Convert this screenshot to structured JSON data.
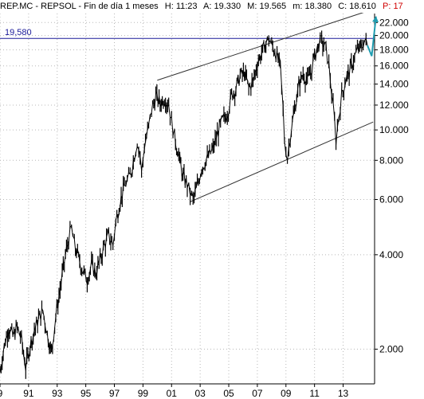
{
  "header": {
    "symbol": "REP.MC - REPSOL - Fin de día 1 meses",
    "h_label": "H:",
    "h_value": "11:23",
    "a_label": "A:",
    "a_value": "19.330",
    "m_label": "M:",
    "m_value": "19.565",
    "m2_label": "m:",
    "m2_value": "18.380",
    "c_label": "C:",
    "c_value": "18.610",
    "p_label": "P",
    "p_value": ": 17"
  },
  "resistance_label": "19,580",
  "colors": {
    "price": "#000000",
    "grid": "#b8b8b8",
    "channel": "#333333",
    "resistance": "#1a1a99",
    "projection": "#1f9db0",
    "p_value": "#d00000"
  },
  "chart_data": {
    "type": "line",
    "title": "REP.MC - REPSOL - Fin de día 1 meses",
    "y_scale": "log",
    "ylim": [
      1.55,
      23.5
    ],
    "y_ticks": [
      2,
      4,
      6,
      8,
      10,
      12,
      14,
      16,
      18,
      20,
      22
    ],
    "y_tick_labels": [
      "2.000",
      "4.000",
      "6.000",
      "8.000",
      "10.000",
      "12.000",
      "14.000",
      "16.000",
      "18.000",
      "20.000",
      "22.000"
    ],
    "xlim": [
      1989,
      2015.2
    ],
    "x_ticks": [
      1989,
      1991,
      1993,
      1995,
      1997,
      1999,
      2001,
      2003,
      2005,
      2007,
      2009,
      2011,
      2013
    ],
    "x_tick_labels": [
      "9",
      "91",
      "93",
      "95",
      "97",
      "99",
      "01",
      "03",
      "05",
      "07",
      "09",
      "11",
      "13"
    ],
    "grid": true,
    "series": [
      {
        "values": [
          [
            1989.0,
            1.7
          ],
          [
            1989.3,
            2.05
          ],
          [
            1989.6,
            2.35
          ],
          [
            1989.9,
            2.2
          ],
          [
            1990.2,
            2.35
          ],
          [
            1990.5,
            2.15
          ],
          [
            1990.8,
            1.75
          ],
          [
            1991.1,
            2.05
          ],
          [
            1991.4,
            2.3
          ],
          [
            1991.7,
            2.5
          ],
          [
            1992.0,
            2.65
          ],
          [
            1992.3,
            2.25
          ],
          [
            1992.6,
            1.95
          ],
          [
            1992.9,
            2.55
          ],
          [
            1993.2,
            3.1
          ],
          [
            1993.5,
            3.8
          ],
          [
            1993.8,
            4.5
          ],
          [
            1994.0,
            4.85
          ],
          [
            1994.2,
            4.3
          ],
          [
            1994.5,
            3.9
          ],
          [
            1994.8,
            3.55
          ],
          [
            1995.1,
            3.35
          ],
          [
            1995.4,
            3.7
          ],
          [
            1995.7,
            3.5
          ],
          [
            1996.0,
            3.85
          ],
          [
            1996.3,
            4.3
          ],
          [
            1996.6,
            4.6
          ],
          [
            1996.9,
            4.3
          ],
          [
            1997.1,
            5.1
          ],
          [
            1997.4,
            5.9
          ],
          [
            1997.7,
            6.6
          ],
          [
            1997.9,
            6.9
          ],
          [
            1998.1,
            7.1
          ],
          [
            1998.4,
            8.3
          ],
          [
            1998.6,
            9.2
          ],
          [
            1998.8,
            8.3
          ],
          [
            1998.9,
            7.3
          ],
          [
            1999.1,
            8.9
          ],
          [
            1999.4,
            10.2
          ],
          [
            1999.6,
            11.6
          ],
          [
            1999.9,
            12.8
          ],
          [
            2000.2,
            12.2
          ],
          [
            2000.5,
            12.6
          ],
          [
            2000.8,
            12.1
          ],
          [
            2001.0,
            10.6
          ],
          [
            2001.2,
            9.6
          ],
          [
            2001.5,
            8.3
          ],
          [
            2001.8,
            7.1
          ],
          [
            2002.1,
            6.7
          ],
          [
            2002.3,
            6.3
          ],
          [
            2002.5,
            6.0
          ],
          [
            2002.8,
            6.6
          ],
          [
            2003.1,
            7.6
          ],
          [
            2003.5,
            8.1
          ],
          [
            2003.9,
            8.7
          ],
          [
            2004.2,
            9.7
          ],
          [
            2004.5,
            10.6
          ],
          [
            2004.9,
            11.3
          ],
          [
            2005.2,
            12.9
          ],
          [
            2005.5,
            13.6
          ],
          [
            2005.8,
            14.9
          ],
          [
            2006.1,
            15.2
          ],
          [
            2006.4,
            13.6
          ],
          [
            2006.7,
            14.3
          ],
          [
            2007.0,
            16.3
          ],
          [
            2007.3,
            17.6
          ],
          [
            2007.6,
            18.9
          ],
          [
            2007.8,
            19.6
          ],
          [
            2008.0,
            18.6
          ],
          [
            2008.3,
            17.6
          ],
          [
            2008.6,
            15.9
          ],
          [
            2008.8,
            11.6
          ],
          [
            2008.9,
            9.3
          ],
          [
            2009.1,
            8.1
          ],
          [
            2009.3,
            9.6
          ],
          [
            2009.6,
            11.6
          ],
          [
            2009.9,
            13.9
          ],
          [
            2010.2,
            15.1
          ],
          [
            2010.5,
            14.3
          ],
          [
            2010.8,
            15.6
          ],
          [
            2011.0,
            17.1
          ],
          [
            2011.3,
            18.9
          ],
          [
            2011.5,
            19.2
          ],
          [
            2011.8,
            18.1
          ],
          [
            2012.0,
            16.1
          ],
          [
            2012.2,
            13.1
          ],
          [
            2012.4,
            10.6
          ],
          [
            2012.5,
            9.3
          ],
          [
            2012.7,
            11.1
          ],
          [
            2012.9,
            12.9
          ],
          [
            2013.2,
            14.6
          ],
          [
            2013.5,
            15.6
          ],
          [
            2013.8,
            17.1
          ],
          [
            2014.0,
            17.9
          ],
          [
            2014.3,
            18.6
          ],
          [
            2014.5,
            19.3
          ],
          [
            2014.7,
            18.6
          ]
        ]
      }
    ],
    "channel_upper": [
      [
        2000.0,
        14.4
      ],
      [
        2014.8,
        24.0
      ]
    ],
    "channel_lower": [
      [
        2002.3,
        5.9
      ],
      [
        2015.1,
        10.6
      ]
    ],
    "resistance": 19.58,
    "projection": [
      [
        2014.7,
        18.6
      ],
      [
        2015.0,
        17.2
      ],
      [
        2015.3,
        23.0
      ]
    ]
  }
}
